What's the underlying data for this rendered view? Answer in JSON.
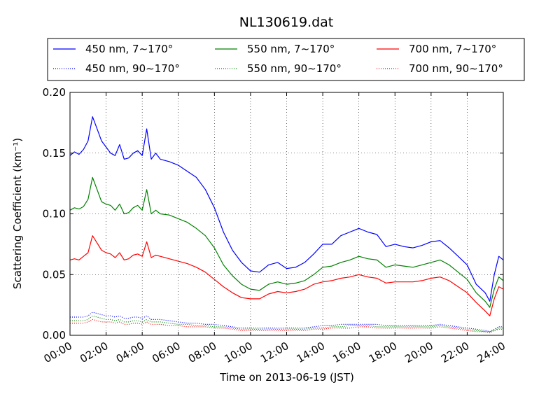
{
  "chart_data": {
    "type": "line",
    "title": "NL130619.dat",
    "xlabel": "Time on 2013-06-19 (JST)",
    "ylabel": "Scattering Coefficient (km⁻¹)",
    "xlim": [
      0,
      24
    ],
    "ylim": [
      0.0,
      0.2
    ],
    "grid": true,
    "legend_position": "top",
    "x_tick_labels": [
      "00:00",
      "02:00",
      "04:00",
      "06:00",
      "08:00",
      "10:00",
      "12:00",
      "14:00",
      "16:00",
      "18:00",
      "20:00",
      "22:00",
      "24:00"
    ],
    "y_tick_labels": [
      "0.00",
      "0.05",
      "0.10",
      "0.15",
      "0.20"
    ],
    "y_ticks": [
      0.0,
      0.05,
      0.1,
      0.15,
      0.2
    ],
    "x_hours": [
      0,
      0.25,
      0.5,
      0.75,
      1,
      1.25,
      1.5,
      1.75,
      2,
      2.25,
      2.5,
      2.75,
      3,
      3.25,
      3.5,
      3.75,
      4,
      4.25,
      4.5,
      4.75,
      5,
      5.5,
      6,
      6.5,
      7,
      7.5,
      8,
      8.5,
      9,
      9.5,
      10,
      10.5,
      11,
      11.5,
      12,
      12.5,
      13,
      13.5,
      14,
      14.5,
      15,
      15.5,
      16,
      16.5,
      17,
      17.5,
      18,
      18.5,
      19,
      19.5,
      20,
      20.5,
      21,
      21.5,
      22,
      22.5,
      23,
      23.25,
      23.5,
      23.75,
      24
    ],
    "series": [
      {
        "name": "450 nm, 7∼170°",
        "color": "#0000ff",
        "style": "solid",
        "values": [
          0.148,
          0.151,
          0.149,
          0.153,
          0.16,
          0.18,
          0.17,
          0.16,
          0.155,
          0.15,
          0.148,
          0.157,
          0.145,
          0.146,
          0.15,
          0.152,
          0.148,
          0.17,
          0.145,
          0.15,
          0.145,
          0.143,
          0.14,
          0.135,
          0.13,
          0.12,
          0.105,
          0.085,
          0.07,
          0.06,
          0.053,
          0.052,
          0.058,
          0.06,
          0.055,
          0.056,
          0.06,
          0.067,
          0.075,
          0.075,
          0.082,
          0.085,
          0.088,
          0.085,
          0.083,
          0.073,
          0.075,
          0.073,
          0.072,
          0.074,
          0.077,
          0.078,
          0.072,
          0.065,
          0.058,
          0.042,
          0.035,
          0.028,
          0.05,
          0.065,
          0.062
        ]
      },
      {
        "name": "550 nm, 7∼170°",
        "color": "#008000",
        "style": "solid",
        "values": [
          0.103,
          0.105,
          0.104,
          0.106,
          0.112,
          0.13,
          0.12,
          0.11,
          0.108,
          0.107,
          0.103,
          0.108,
          0.1,
          0.101,
          0.105,
          0.107,
          0.103,
          0.12,
          0.1,
          0.103,
          0.1,
          0.099,
          0.096,
          0.093,
          0.088,
          0.082,
          0.072,
          0.058,
          0.049,
          0.042,
          0.038,
          0.037,
          0.042,
          0.044,
          0.042,
          0.043,
          0.045,
          0.05,
          0.056,
          0.057,
          0.06,
          0.062,
          0.065,
          0.063,
          0.062,
          0.056,
          0.058,
          0.057,
          0.056,
          0.058,
          0.06,
          0.062,
          0.058,
          0.052,
          0.046,
          0.035,
          0.028,
          0.023,
          0.038,
          0.048,
          0.045
        ]
      },
      {
        "name": "700 nm, 7∼170°",
        "color": "#ff0000",
        "style": "solid",
        "values": [
          0.062,
          0.063,
          0.062,
          0.065,
          0.068,
          0.082,
          0.076,
          0.07,
          0.068,
          0.067,
          0.064,
          0.068,
          0.062,
          0.063,
          0.066,
          0.067,
          0.065,
          0.077,
          0.064,
          0.066,
          0.065,
          0.063,
          0.061,
          0.059,
          0.056,
          0.052,
          0.046,
          0.04,
          0.035,
          0.031,
          0.03,
          0.03,
          0.034,
          0.036,
          0.035,
          0.036,
          0.038,
          0.042,
          0.044,
          0.045,
          0.047,
          0.048,
          0.05,
          0.048,
          0.047,
          0.043,
          0.044,
          0.044,
          0.044,
          0.045,
          0.047,
          0.048,
          0.045,
          0.04,
          0.035,
          0.027,
          0.02,
          0.016,
          0.03,
          0.04,
          0.038
        ]
      },
      {
        "name": "450 nm, 90∼170°",
        "color": "#0000ff",
        "style": "dotted",
        "values": [
          0.015,
          0.015,
          0.015,
          0.015,
          0.016,
          0.019,
          0.018,
          0.017,
          0.016,
          0.016,
          0.015,
          0.016,
          0.014,
          0.014,
          0.015,
          0.015,
          0.014,
          0.016,
          0.013,
          0.013,
          0.013,
          0.012,
          0.011,
          0.01,
          0.01,
          0.009,
          0.009,
          0.008,
          0.007,
          0.006,
          0.006,
          0.006,
          0.006,
          0.006,
          0.006,
          0.006,
          0.006,
          0.007,
          0.008,
          0.008,
          0.009,
          0.009,
          0.009,
          0.009,
          0.009,
          0.008,
          0.008,
          0.008,
          0.008,
          0.008,
          0.008,
          0.009,
          0.008,
          0.007,
          0.006,
          0.005,
          0.004,
          0.003,
          0.005,
          0.007,
          0.007
        ]
      },
      {
        "name": "550 nm, 90∼170°",
        "color": "#008000",
        "style": "dotted",
        "values": [
          0.012,
          0.012,
          0.012,
          0.012,
          0.013,
          0.016,
          0.015,
          0.014,
          0.013,
          0.013,
          0.012,
          0.013,
          0.011,
          0.011,
          0.012,
          0.012,
          0.011,
          0.013,
          0.011,
          0.011,
          0.011,
          0.01,
          0.009,
          0.009,
          0.008,
          0.008,
          0.007,
          0.007,
          0.006,
          0.005,
          0.005,
          0.005,
          0.005,
          0.005,
          0.005,
          0.005,
          0.005,
          0.006,
          0.006,
          0.007,
          0.007,
          0.008,
          0.008,
          0.008,
          0.007,
          0.007,
          0.007,
          0.007,
          0.007,
          0.007,
          0.007,
          0.008,
          0.007,
          0.006,
          0.005,
          0.004,
          0.003,
          0.003,
          0.004,
          0.006,
          0.006
        ]
      },
      {
        "name": "700 nm, 90∼170°",
        "color": "#ff0000",
        "style": "dotted",
        "values": [
          0.01,
          0.01,
          0.01,
          0.01,
          0.011,
          0.013,
          0.012,
          0.011,
          0.011,
          0.011,
          0.01,
          0.011,
          0.009,
          0.009,
          0.01,
          0.01,
          0.009,
          0.011,
          0.009,
          0.009,
          0.009,
          0.008,
          0.008,
          0.007,
          0.007,
          0.007,
          0.006,
          0.006,
          0.005,
          0.004,
          0.004,
          0.004,
          0.004,
          0.004,
          0.004,
          0.004,
          0.004,
          0.005,
          0.005,
          0.006,
          0.006,
          0.006,
          0.007,
          0.007,
          0.006,
          0.006,
          0.006,
          0.006,
          0.006,
          0.006,
          0.006,
          0.007,
          0.006,
          0.005,
          0.004,
          0.003,
          0.003,
          0.002,
          0.004,
          0.005,
          0.005
        ]
      }
    ]
  }
}
